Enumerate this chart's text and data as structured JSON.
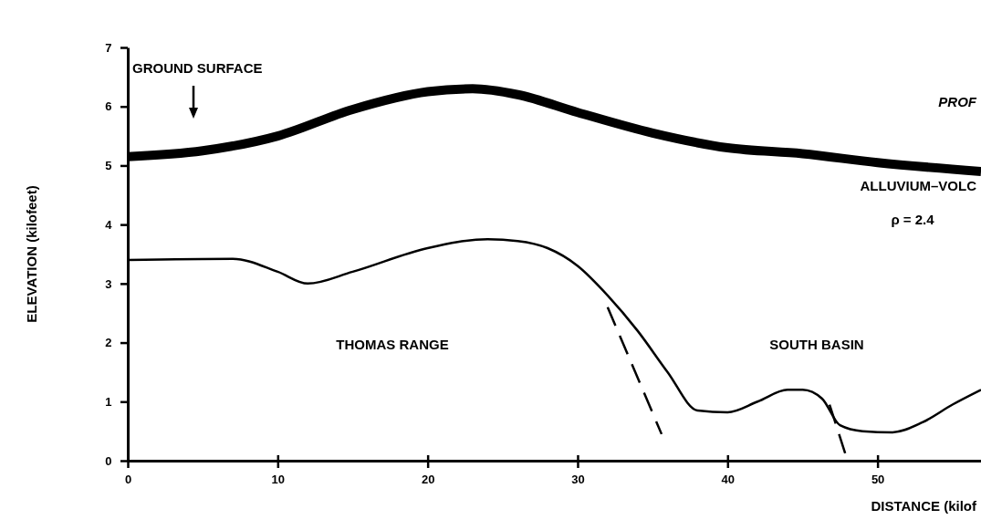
{
  "chart_data": {
    "type": "line",
    "xlabel": "DISTANCE (kilof",
    "ylabel": "ELEVATION (kilofeet)",
    "xlim": [
      0,
      56.9
    ],
    "ylim": [
      0,
      7
    ],
    "xticks": [
      0,
      10,
      20,
      30,
      40,
      50
    ],
    "yticks": [
      0,
      1,
      2,
      3,
      4,
      5,
      6,
      7
    ],
    "grid": false,
    "marker": "none",
    "series": [
      {
        "color": "#000000",
        "x": [
          0,
          5,
          10,
          15,
          20,
          23,
          26,
          30,
          35,
          40,
          45,
          50,
          56.9
        ],
        "values": [
          5.15,
          5.25,
          5.5,
          5.95,
          6.25,
          6.3,
          6.2,
          5.9,
          5.55,
          5.3,
          5.2,
          5.05,
          4.9
        ]
      },
      {
        "color": "#000000",
        "x": [
          0,
          7,
          10,
          12,
          15,
          20,
          24,
          26,
          28,
          30,
          32,
          34,
          36,
          38,
          40,
          42,
          44,
          45,
          46.3,
          47.5,
          49,
          51,
          53,
          55,
          56.9
        ],
        "values": [
          3.4,
          3.42,
          3.2,
          3.0,
          3.2,
          3.6,
          3.75,
          3.72,
          3.6,
          3.3,
          2.8,
          2.2,
          1.5,
          0.85,
          0.82,
          1.0,
          1.2,
          1.2,
          1.05,
          0.6,
          0.5,
          0.48,
          0.65,
          0.95,
          1.2
        ]
      },
      {
        "color": "#000000",
        "line_style": "dashed",
        "x": [
          32,
          35.6
        ],
        "values": [
          2.6,
          0.45
        ]
      },
      {
        "color": "#000000",
        "line_style": "dashed",
        "x": [
          46.8,
          48
        ],
        "values": [
          0.95,
          0
        ]
      }
    ],
    "annotations": [
      "GROUND SURFACE",
      "PROF",
      "ALLUVIUM–VOLC",
      "ρ = 2.4",
      "THOMAS RANGE",
      "SOUTH BASIN"
    ]
  }
}
